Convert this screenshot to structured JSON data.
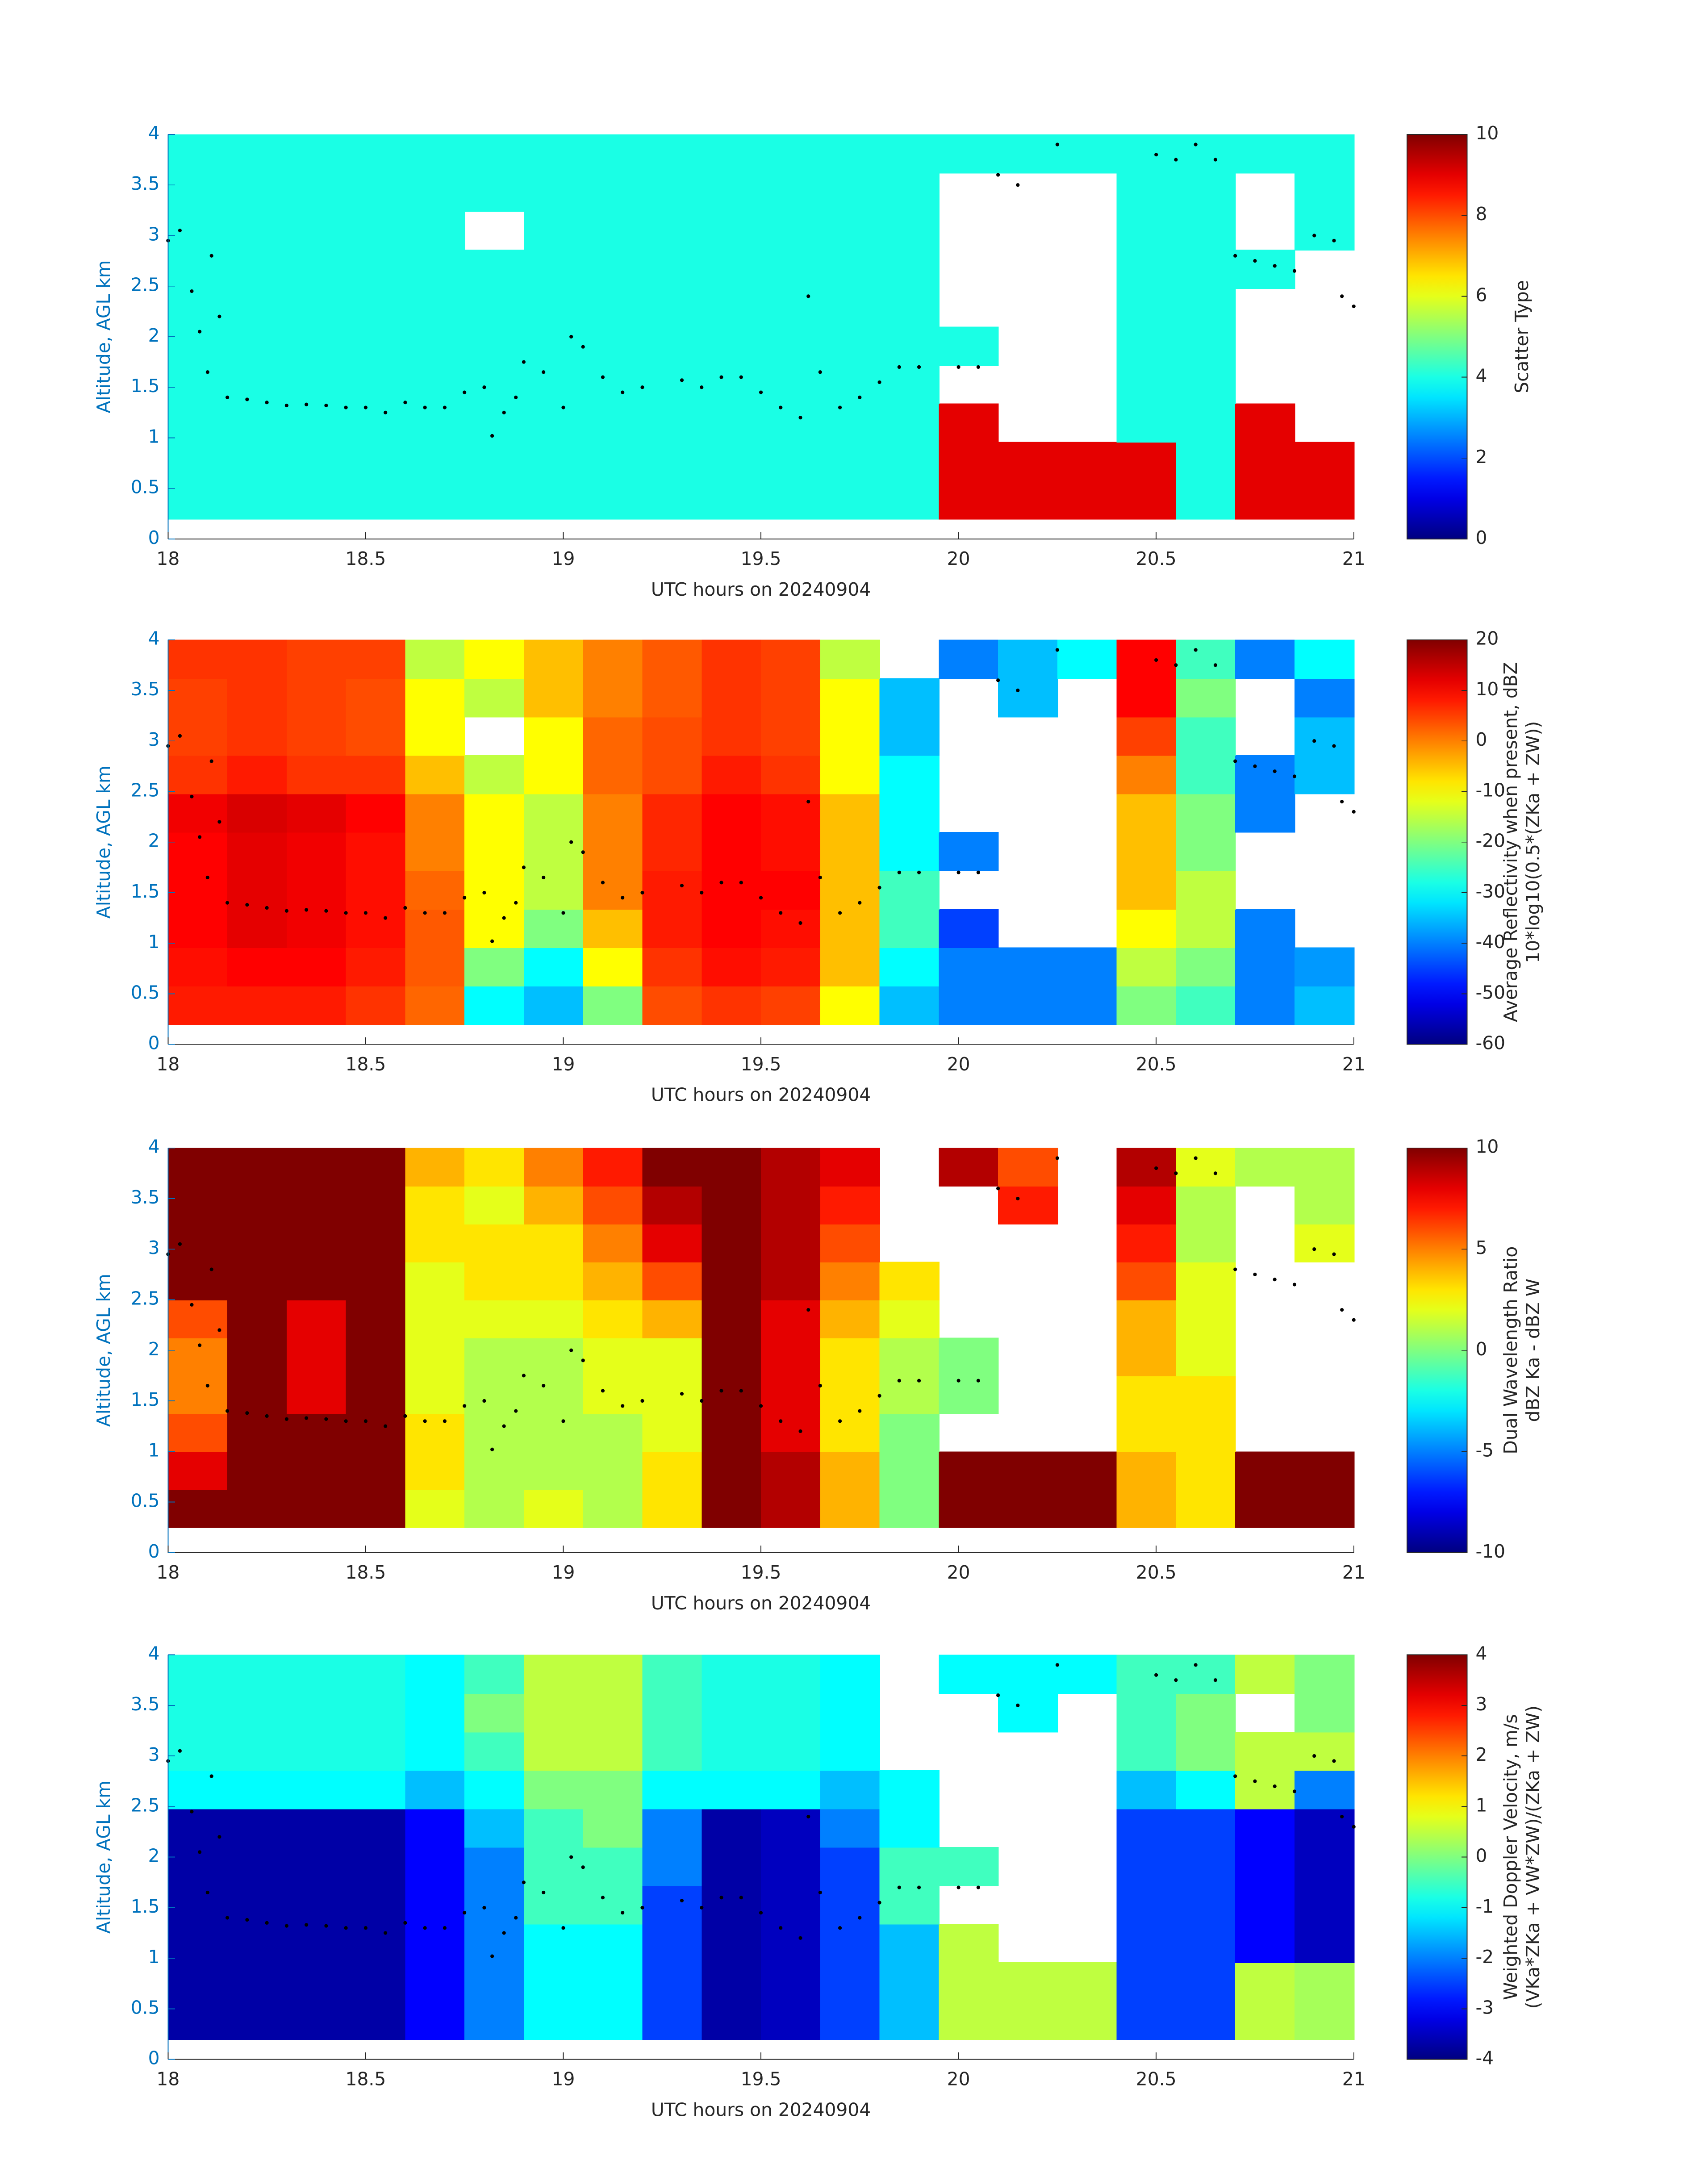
{
  "chart_data": [
    {
      "type": "heatmap",
      "ylabel": "Altitude, AGL km",
      "xlabel": "UTC hours on 20240904",
      "colorbar_label": [
        "Scatter Type"
      ],
      "xlim": [
        18,
        21
      ],
      "xticks": [
        18,
        18.5,
        19,
        19.5,
        20,
        20.5,
        21
      ],
      "ylim": [
        0,
        4
      ],
      "yticks": [
        0,
        0.5,
        1,
        1.5,
        2,
        2.5,
        3,
        3.5,
        4
      ],
      "clim": [
        0,
        10
      ],
      "cticks": [
        0,
        2,
        4,
        6,
        8,
        10
      ],
      "colormap": "jet",
      "xbins": [
        18,
        18.15,
        18.3,
        18.45,
        18.6,
        18.75,
        18.9,
        19.05,
        19.2,
        19.35,
        19.5,
        19.65,
        19.8,
        19.95,
        20.1,
        20.25,
        20.4,
        20.55,
        20.7,
        20.85,
        21
      ],
      "ybins": [
        0.2,
        0.58,
        0.96,
        1.34,
        1.72,
        2.1,
        2.48,
        2.86,
        3.24,
        3.62,
        4
      ],
      "z": [
        [
          4,
          4,
          4,
          4,
          4,
          4,
          4,
          4,
          4,
          4,
          4,
          4,
          4,
          9,
          9,
          9,
          9,
          4,
          9,
          9
        ],
        [
          4,
          4,
          4,
          4,
          4,
          4,
          4,
          4,
          4,
          4,
          4,
          4,
          4,
          9,
          9,
          9,
          9,
          4,
          9,
          9
        ],
        [
          4,
          4,
          4,
          4,
          4,
          4,
          4,
          4,
          4,
          4,
          4,
          4,
          4,
          9,
          null,
          null,
          4,
          4,
          9,
          null
        ],
        [
          4,
          4,
          4,
          4,
          4,
          4,
          4,
          4,
          4,
          4,
          4,
          4,
          4,
          null,
          null,
          null,
          4,
          4,
          null,
          null
        ],
        [
          4,
          4,
          4,
          4,
          4,
          4,
          4,
          4,
          4,
          4,
          4,
          4,
          4,
          4,
          null,
          null,
          4,
          4,
          null,
          null
        ],
        [
          4,
          4,
          4,
          4,
          4,
          4,
          4,
          4,
          4,
          4,
          4,
          4,
          4,
          null,
          null,
          null,
          4,
          4,
          null,
          null
        ],
        [
          4,
          4,
          4,
          4,
          4,
          4,
          4,
          4,
          4,
          4,
          4,
          4,
          4,
          null,
          null,
          null,
          4,
          4,
          4,
          null
        ],
        [
          4,
          4,
          4,
          4,
          4,
          null,
          4,
          4,
          4,
          4,
          4,
          4,
          4,
          null,
          null,
          null,
          4,
          4,
          null,
          4
        ],
        [
          4,
          4,
          4,
          4,
          4,
          4,
          4,
          4,
          4,
          4,
          4,
          4,
          4,
          null,
          null,
          null,
          4,
          4,
          null,
          4
        ],
        [
          4,
          4,
          4,
          4,
          4,
          4,
          4,
          4,
          4,
          4,
          4,
          4,
          4,
          4,
          4,
          4,
          4,
          4,
          4,
          4
        ]
      ],
      "overlay": {
        "x": [
          18.0,
          18.03,
          18.06,
          18.08,
          18.1,
          18.11,
          18.13,
          18.15,
          18.2,
          18.25,
          18.3,
          18.35,
          18.4,
          18.45,
          18.5,
          18.55,
          18.6,
          18.65,
          18.7,
          18.75,
          18.8,
          18.82,
          18.85,
          18.88,
          18.9,
          18.95,
          19.0,
          19.02,
          19.05,
          19.1,
          19.15,
          19.2,
          19.3,
          19.35,
          19.4,
          19.45,
          19.5,
          19.55,
          19.6,
          19.62,
          19.65,
          19.7,
          19.75,
          19.8,
          19.85,
          19.9,
          20.0,
          20.05,
          20.1,
          20.15,
          20.25,
          20.5,
          20.55,
          20.6,
          20.65,
          20.7,
          20.75,
          20.8,
          20.85,
          20.9,
          20.95,
          20.97,
          21.0
        ],
        "y": [
          2.95,
          3.05,
          2.45,
          2.05,
          1.65,
          2.8,
          2.2,
          1.4,
          1.38,
          1.35,
          1.32,
          1.33,
          1.32,
          1.3,
          1.3,
          1.25,
          1.35,
          1.3,
          1.3,
          1.45,
          1.5,
          1.02,
          1.25,
          1.4,
          1.75,
          1.65,
          1.3,
          2.0,
          1.9,
          1.6,
          1.45,
          1.5,
          1.57,
          1.5,
          1.6,
          1.6,
          1.45,
          1.3,
          1.2,
          2.4,
          1.65,
          1.3,
          1.4,
          1.55,
          1.7,
          1.7,
          1.7,
          1.7,
          3.6,
          3.5,
          3.9,
          3.8,
          3.75,
          3.9,
          3.75,
          2.8,
          2.75,
          2.7,
          2.65,
          3.0,
          2.95,
          2.4,
          2.3
        ]
      }
    },
    {
      "type": "heatmap",
      "ylabel": "Altitude, AGL km",
      "xlabel": "UTC hours on 20240904",
      "colorbar_label": [
        "Average Reflectivity when present, dBZ",
        "10*log10(0.5*(ZKa + ZW))"
      ],
      "xlim": [
        18,
        21
      ],
      "xticks": [
        18,
        18.5,
        19,
        19.5,
        20,
        20.5,
        21
      ],
      "ylim": [
        0,
        4
      ],
      "yticks": [
        0,
        0.5,
        1,
        1.5,
        2,
        2.5,
        3,
        3.5,
        4
      ],
      "clim": [
        -60,
        20
      ],
      "cticks": [
        -60,
        -50,
        -40,
        -30,
        -20,
        -10,
        0,
        10,
        20
      ],
      "colormap": "jet",
      "xbins": [
        18,
        18.15,
        18.3,
        18.45,
        18.6,
        18.75,
        18.9,
        19.05,
        19.2,
        19.35,
        19.5,
        19.65,
        19.8,
        19.95,
        20.1,
        20.25,
        20.4,
        20.55,
        20.7,
        20.85,
        21
      ],
      "ybins": [
        0.2,
        0.58,
        0.96,
        1.34,
        1.72,
        2.1,
        2.48,
        2.86,
        3.24,
        3.62,
        4
      ],
      "z": [
        [
          8,
          8,
          8,
          6,
          2,
          -30,
          -35,
          -20,
          4,
          6,
          5,
          -10,
          -35,
          -40,
          -40,
          -40,
          -20,
          -25,
          -40,
          -35
        ],
        [
          9,
          10,
          10,
          8,
          3,
          -20,
          -30,
          -10,
          6,
          9,
          8,
          -5,
          -30,
          -40,
          -40,
          -40,
          -15,
          -20,
          -40,
          -38
        ],
        [
          10,
          12,
          11,
          9,
          3,
          -10,
          -20,
          -5,
          8,
          10,
          9,
          -5,
          -25,
          -45,
          null,
          null,
          -10,
          -15,
          -40,
          null
        ],
        [
          10,
          12,
          11,
          9,
          2,
          -10,
          -15,
          0,
          8,
          10,
          10,
          -5,
          -25,
          null,
          null,
          null,
          -5,
          -15,
          null,
          null
        ],
        [
          10,
          12,
          11,
          9,
          0,
          -10,
          -15,
          0,
          7,
          10,
          9,
          -5,
          -30,
          -40,
          null,
          null,
          -5,
          -20,
          null,
          null
        ],
        [
          11,
          13,
          12,
          10,
          0,
          -10,
          -15,
          0,
          7,
          10,
          9,
          -5,
          -30,
          null,
          null,
          null,
          -5,
          -20,
          -40,
          null
        ],
        [
          6,
          8,
          6,
          6,
          -5,
          -15,
          -10,
          2,
          4,
          8,
          6,
          -10,
          -30,
          null,
          null,
          null,
          0,
          -25,
          -40,
          -35
        ],
        [
          5,
          6,
          5,
          4,
          -10,
          null,
          -10,
          2,
          4,
          6,
          5,
          -10,
          -35,
          null,
          null,
          null,
          5,
          -25,
          null,
          -35
        ],
        [
          5,
          6,
          5,
          4,
          -10,
          -15,
          -5,
          0,
          3,
          6,
          5,
          -10,
          -35,
          null,
          -35,
          null,
          10,
          -20,
          null,
          -40
        ],
        [
          6,
          6,
          5,
          5,
          -15,
          -10,
          -5,
          0,
          3,
          6,
          5,
          -15,
          null,
          -40,
          -35,
          -30,
          10,
          -25,
          -40,
          -30
        ]
      ]
    },
    {
      "type": "heatmap",
      "ylabel": "Altitude, AGL km",
      "xlabel": "UTC hours on 20240904",
      "colorbar_label": [
        "Dual Wavelength Ratio",
        "dBZ Ka - dBZ W"
      ],
      "xlim": [
        18,
        21
      ],
      "xticks": [
        18,
        18.5,
        19,
        19.5,
        20,
        20.5,
        21
      ],
      "ylim": [
        0,
        4
      ],
      "yticks": [
        0,
        0.5,
        1,
        1.5,
        2,
        2.5,
        3,
        3.5,
        4
      ],
      "clim": [
        -10,
        10
      ],
      "cticks": [
        -10,
        -5,
        0,
        5,
        10
      ],
      "colormap": "jet",
      "xbins": [
        18,
        18.15,
        18.3,
        18.45,
        18.6,
        18.75,
        18.9,
        19.05,
        19.2,
        19.35,
        19.5,
        19.65,
        19.8,
        19.95,
        20.1,
        20.25,
        20.4,
        20.55,
        20.7,
        20.85,
        21
      ],
      "ybins": [
        0.25,
        0.625,
        1.0,
        1.375,
        1.75,
        2.125,
        2.5,
        2.875,
        3.25,
        3.625,
        4
      ],
      "z": [
        [
          10,
          10,
          10,
          10,
          2,
          1,
          2,
          1,
          3,
          10,
          9,
          4,
          0,
          10,
          10,
          10,
          4,
          3,
          10,
          10
        ],
        [
          8,
          10,
          10,
          10,
          3,
          1,
          1,
          1,
          3,
          10,
          9,
          4,
          0,
          10,
          10,
          10,
          4,
          3,
          10,
          10
        ],
        [
          6,
          10,
          10,
          10,
          3,
          1,
          1,
          1,
          2,
          10,
          8,
          3,
          0,
          null,
          null,
          null,
          3,
          3,
          null,
          null
        ],
        [
          5,
          10,
          8,
          10,
          2,
          1,
          1,
          2,
          2,
          10,
          8,
          3,
          1,
          0,
          null,
          null,
          3,
          3,
          null,
          null
        ],
        [
          5,
          10,
          8,
          10,
          2,
          1,
          1,
          2,
          2,
          10,
          8,
          3,
          1,
          0,
          null,
          null,
          4,
          2,
          null,
          null
        ],
        [
          6,
          10,
          8,
          10,
          2,
          2,
          2,
          3,
          4,
          10,
          8,
          4,
          2,
          null,
          null,
          null,
          4,
          2,
          null,
          null
        ],
        [
          10,
          10,
          10,
          10,
          2,
          3,
          3,
          4,
          6,
          10,
          9,
          5,
          3,
          null,
          null,
          null,
          6,
          2,
          null,
          null
        ],
        [
          10,
          10,
          10,
          10,
          3,
          3,
          3,
          5,
          8,
          10,
          9,
          6,
          null,
          null,
          null,
          null,
          7,
          1,
          null,
          2
        ],
        [
          10,
          10,
          10,
          10,
          3,
          2,
          4,
          6,
          9,
          10,
          9,
          7,
          null,
          null,
          7,
          null,
          8,
          1,
          null,
          1
        ],
        [
          10,
          10,
          10,
          10,
          4,
          3,
          5,
          7,
          10,
          10,
          9,
          8,
          null,
          9,
          6,
          null,
          9,
          2,
          1,
          1
        ]
      ]
    },
    {
      "type": "heatmap",
      "ylabel": "Altitude, AGL km",
      "xlabel": "UTC hours on 20240904",
      "colorbar_label": [
        "Weighted Doppler Velocity, m/s",
        "(VKa*ZKa + VW*ZW)/(ZKa + ZW)"
      ],
      "xlim": [
        18,
        21
      ],
      "xticks": [
        18,
        18.5,
        19,
        19.5,
        20,
        20.5,
        21
      ],
      "ylim": [
        0,
        4
      ],
      "yticks": [
        0,
        0.5,
        1,
        1.5,
        2,
        2.5,
        3,
        3.5,
        4
      ],
      "clim": [
        -4,
        4
      ],
      "cticks": [
        -4,
        -3,
        -2,
        -1,
        0,
        1,
        2,
        3,
        4
      ],
      "colormap": "jet",
      "xbins": [
        18,
        18.15,
        18.3,
        18.45,
        18.6,
        18.75,
        18.9,
        19.05,
        19.2,
        19.35,
        19.5,
        19.65,
        19.8,
        19.95,
        20.1,
        20.25,
        20.4,
        20.55,
        20.7,
        20.85,
        21
      ],
      "ybins": [
        0.2,
        0.58,
        0.96,
        1.34,
        1.72,
        2.1,
        2.48,
        2.86,
        3.24,
        3.62,
        4
      ],
      "z": [
        [
          -3.7,
          -3.7,
          -3.7,
          -3.7,
          -3,
          -2,
          -1,
          -1,
          -2.5,
          -3.7,
          -3.5,
          -2.5,
          -1.5,
          0.5,
          0.5,
          0.5,
          -2.5,
          -2.5,
          0.5,
          0.3
        ],
        [
          -3.7,
          -3.7,
          -3.7,
          -3.7,
          -3,
          -2,
          -1,
          -1,
          -2.5,
          -3.7,
          -3.5,
          -2.5,
          -1.5,
          0.5,
          0.5,
          0.5,
          -2.5,
          -2.5,
          0.5,
          0.3
        ],
        [
          -3.7,
          -3.7,
          -3.7,
          -3.7,
          -3,
          -2,
          -1,
          -1,
          -2.5,
          -3.7,
          -3.5,
          -2.5,
          -1.5,
          0.5,
          null,
          null,
          -2.5,
          -2.5,
          -3,
          -3.5
        ],
        [
          -3.7,
          -3.7,
          -3.7,
          -3.7,
          -3,
          -2,
          -0.5,
          -0.5,
          -2.5,
          -3.7,
          -3.5,
          -2.5,
          -0.5,
          null,
          null,
          null,
          -2.5,
          -2.5,
          -3,
          -3.5
        ],
        [
          -3.7,
          -3.7,
          -3.7,
          -3.7,
          -3,
          -2,
          -0.5,
          -0.5,
          -2,
          -3.7,
          -3.5,
          -2.5,
          -0.5,
          -0.5,
          null,
          null,
          -2.5,
          -2.5,
          -3,
          -3.5
        ],
        [
          -3.7,
          -3.7,
          -3.7,
          -3.7,
          -3,
          -1.5,
          -0.5,
          0,
          -2,
          -3.7,
          -3.5,
          -2,
          -1,
          null,
          null,
          null,
          -2.5,
          -2.5,
          -3,
          -3.5
        ],
        [
          -1,
          -1,
          -1,
          -1,
          -1.5,
          -1,
          0,
          0,
          -1,
          -1,
          -1,
          -1.5,
          -1,
          null,
          null,
          null,
          -1.5,
          -1,
          0.5,
          -2
        ],
        [
          -0.8,
          -0.8,
          -0.8,
          -0.8,
          -1,
          -0.5,
          0.5,
          0.5,
          -0.5,
          -0.8,
          -0.8,
          -1,
          null,
          null,
          null,
          null,
          -0.5,
          0,
          0.5,
          0.5
        ],
        [
          -0.8,
          -0.8,
          -0.8,
          -0.8,
          -1,
          0,
          0.5,
          0.5,
          -0.5,
          -0.8,
          -0.8,
          -1,
          null,
          null,
          -1,
          null,
          -0.5,
          0,
          null,
          0
        ],
        [
          -0.8,
          -0.8,
          -0.8,
          -0.8,
          -1,
          -0.5,
          0.5,
          0.5,
          -0.5,
          -0.8,
          -0.8,
          -1,
          null,
          -1,
          -1,
          -1,
          -0.5,
          -0.5,
          0.5,
          0
        ]
      ]
    }
  ]
}
